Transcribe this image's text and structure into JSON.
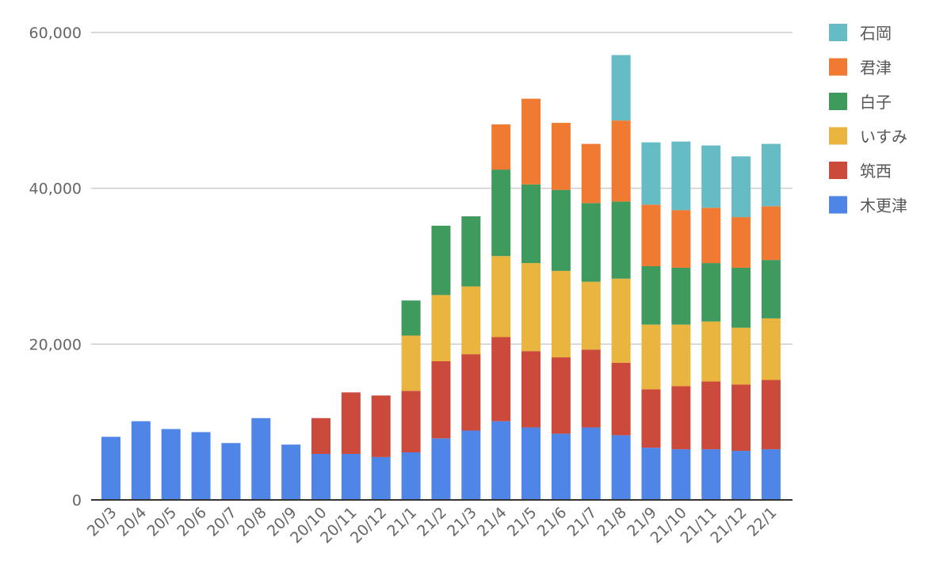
{
  "chart_data": {
    "type": "bar",
    "stacked": true,
    "title": "",
    "xlabel": "",
    "ylabel": "",
    "ylim": [
      0,
      60000
    ],
    "yticks": [
      0,
      20000,
      40000,
      60000
    ],
    "ytick_labels": [
      "0",
      "20,000",
      "40,000",
      "60,000"
    ],
    "grid": true,
    "legend_position": "right",
    "categories": [
      "20/3",
      "20/4",
      "20/5",
      "20/6",
      "20/7",
      "20/8",
      "20/9",
      "20/10",
      "20/11",
      "20/12",
      "21/1",
      "21/2",
      "21/3",
      "21/4",
      "21/5",
      "21/6",
      "21/7",
      "21/8",
      "21/9",
      "21/10",
      "21/11",
      "21/12",
      "22/1"
    ],
    "series": [
      {
        "name": "木更津",
        "color": "#5085e8",
        "values": [
          8100,
          10100,
          9100,
          8700,
          7300,
          10500,
          7100,
          5900,
          5900,
          5500,
          6100,
          7900,
          8900,
          10100,
          9300,
          8500,
          9300,
          8300,
          6700,
          6500,
          6500,
          6300,
          6500
        ]
      },
      {
        "name": "筑西",
        "color": "#cc4a3c",
        "values": [
          0,
          0,
          0,
          0,
          0,
          0,
          0,
          4600,
          7900,
          7900,
          7900,
          9900,
          9800,
          10800,
          9800,
          9800,
          10000,
          9300,
          7500,
          8100,
          8700,
          8500,
          8900
        ]
      },
      {
        "name": "いすみ",
        "color": "#eab53f",
        "values": [
          0,
          0,
          0,
          0,
          0,
          0,
          0,
          0,
          0,
          0,
          7100,
          8500,
          8700,
          10400,
          11300,
          11100,
          8700,
          10800,
          8300,
          7900,
          7700,
          7300,
          7900
        ]
      },
      {
        "name": "白子",
        "color": "#3f9a5e",
        "values": [
          0,
          0,
          0,
          0,
          0,
          0,
          0,
          0,
          0,
          0,
          4500,
          8900,
          9000,
          11100,
          10100,
          10400,
          10100,
          9900,
          7500,
          7300,
          7500,
          7700,
          7500
        ]
      },
      {
        "name": "君津",
        "color": "#f07a31",
        "values": [
          0,
          0,
          0,
          0,
          0,
          0,
          0,
          0,
          0,
          0,
          0,
          0,
          0,
          5800,
          11000,
          8600,
          7600,
          10400,
          7900,
          7400,
          7100,
          6500,
          6900
        ]
      },
      {
        "name": "石岡",
        "color": "#66bcc5",
        "values": [
          0,
          0,
          0,
          0,
          0,
          0,
          0,
          0,
          0,
          0,
          0,
          0,
          0,
          0,
          0,
          0,
          0,
          8400,
          8000,
          8800,
          8000,
          7800,
          8000
        ]
      }
    ],
    "legend_order": [
      "石岡",
      "君津",
      "白子",
      "いすみ",
      "筑西",
      "木更津"
    ]
  }
}
